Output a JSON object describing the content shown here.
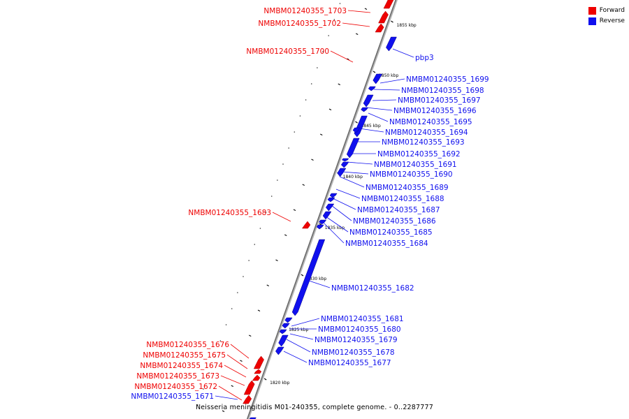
{
  "legend": {
    "forward": {
      "label": "Forward",
      "color": "#ee0000"
    },
    "reverse": {
      "label": "Reverse",
      "color": "#1010ee"
    }
  },
  "caption": "Neisseria meningitidis M01-240355, complete genome. - 0..2287777",
  "ticks": [
    "1855 kbp",
    "1850 kbp",
    "1845 kbp",
    "1840 kbp",
    "1835 kbp",
    "1830 kbp",
    "1825 kbp",
    "1820 kbp"
  ],
  "genes": [
    {
      "label": "NMBM01240355_1703",
      "strand": "forward"
    },
    {
      "label": "NMBM01240355_1702",
      "strand": "forward"
    },
    {
      "label": "NMBM01240355_1700",
      "strand": "forward"
    },
    {
      "label": "pbp3",
      "strand": "reverse"
    },
    {
      "label": "NMBM01240355_1699",
      "strand": "reverse"
    },
    {
      "label": "NMBM01240355_1698",
      "strand": "reverse"
    },
    {
      "label": "NMBM01240355_1697",
      "strand": "reverse"
    },
    {
      "label": "NMBM01240355_1696",
      "strand": "reverse"
    },
    {
      "label": "NMBM01240355_1695",
      "strand": "reverse"
    },
    {
      "label": "NMBM01240355_1694",
      "strand": "reverse"
    },
    {
      "label": "NMBM01240355_1693",
      "strand": "reverse"
    },
    {
      "label": "NMBM01240355_1692",
      "strand": "reverse"
    },
    {
      "label": "NMBM01240355_1691",
      "strand": "reverse"
    },
    {
      "label": "NMBM01240355_1690",
      "strand": "reverse"
    },
    {
      "label": "NMBM01240355_1689",
      "strand": "reverse"
    },
    {
      "label": "NMBM01240355_1688",
      "strand": "reverse"
    },
    {
      "label": "NMBM01240355_1687",
      "strand": "reverse"
    },
    {
      "label": "NMBM01240355_1686",
      "strand": "reverse"
    },
    {
      "label": "NMBM01240355_1685",
      "strand": "reverse"
    },
    {
      "label": "NMBM01240355_1684",
      "strand": "reverse"
    },
    {
      "label": "NMBM01240355_1683",
      "strand": "forward"
    },
    {
      "label": "NMBM01240355_1682",
      "strand": "reverse"
    },
    {
      "label": "NMBM01240355_1681",
      "strand": "reverse"
    },
    {
      "label": "NMBM01240355_1680",
      "strand": "reverse"
    },
    {
      "label": "NMBM01240355_1679",
      "strand": "reverse"
    },
    {
      "label": "NMBM01240355_1678",
      "strand": "reverse"
    },
    {
      "label": "NMBM01240355_1677",
      "strand": "reverse"
    },
    {
      "label": "NMBM01240355_1676",
      "strand": "forward"
    },
    {
      "label": "NMBM01240355_1675",
      "strand": "forward"
    },
    {
      "label": "NMBM01240355_1674",
      "strand": "forward"
    },
    {
      "label": "NMBM01240355_1673",
      "strand": "forward"
    },
    {
      "label": "NMBM01240355_1672",
      "strand": "forward"
    },
    {
      "label": "NMBM01240355_1671",
      "strand": "reverse"
    }
  ]
}
